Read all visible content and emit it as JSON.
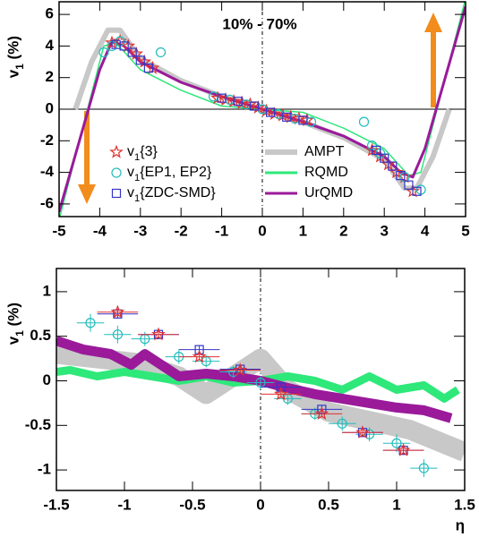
{
  "chart_data": [
    {
      "type": "scatter",
      "annotation": "10% - 70%",
      "ylabel": "v1 (%)",
      "xlim": [
        -5,
        5
      ],
      "xticks": [
        -5,
        -4,
        -3,
        -2,
        -1,
        0,
        1,
        2,
        3,
        4,
        5
      ],
      "ylim": [
        -6.8,
        6.8
      ],
      "yticks": [
        -6,
        -4,
        -2,
        0,
        2,
        4,
        6
      ],
      "hline": 0,
      "vline": 0,
      "series": [
        {
          "name": "AMPT",
          "kind": "line",
          "color": "#c8c8c8",
          "width": 6,
          "x": [
            -4.6,
            -4.2,
            -3.8,
            -3.5,
            -3,
            -2,
            -1,
            0,
            1,
            2,
            3,
            3.5,
            3.8,
            4.2,
            4.6
          ],
          "values": [
            0,
            3,
            5,
            5,
            3.2,
            1.8,
            0.8,
            0,
            -0.8,
            -1.8,
            -3.2,
            -5,
            -5,
            -3,
            0
          ]
        },
        {
          "name": "RQMD",
          "kind": "line",
          "color": "#2ee87a",
          "width": 1.5,
          "x": [
            -5,
            -4.6,
            -4.2,
            -3.9,
            -3.6,
            -3,
            -2,
            -1,
            0,
            1,
            2,
            3,
            3.6,
            3.9,
            4.2,
            4.6,
            5
          ],
          "values": [
            -7,
            -3,
            1,
            4,
            4.2,
            2.5,
            1.2,
            0.2,
            0,
            -0.2,
            -1.2,
            -2.5,
            -4.2,
            -4,
            -1,
            3,
            7
          ]
        },
        {
          "name": "UrQMD",
          "kind": "line",
          "color": "#9a1a9a",
          "width": 3,
          "x": [
            -5,
            -4.5,
            -4,
            -3.7,
            -3.4,
            -3,
            -2,
            -1,
            0,
            1,
            2,
            3,
            3.4,
            3.7,
            4,
            4.5,
            5
          ],
          "values": [
            -6.5,
            -2,
            2.5,
            4.3,
            4,
            3,
            1.7,
            0.8,
            0,
            -0.8,
            -1.7,
            -3,
            -4,
            -4.3,
            -2.5,
            2,
            6.5
          ]
        },
        {
          "name": "v1{3}",
          "kind": "marker",
          "marker": "star",
          "color": "#e03030",
          "x": [
            -3.7,
            -3.5,
            -3.3,
            -3.1,
            -2.9,
            -2.7,
            -1.1,
            -0.9,
            -0.7,
            -0.5,
            -0.3,
            -0.1,
            0.1,
            0.3,
            0.5,
            0.7,
            0.9,
            1.1,
            2.7,
            2.9,
            3.1,
            3.3,
            3.5,
            3.7
          ],
          "values": [
            4.2,
            4.3,
            4.0,
            3.5,
            3.0,
            2.6,
            0.7,
            0.6,
            0.5,
            0.4,
            0.3,
            0.1,
            -0.1,
            -0.3,
            -0.4,
            -0.5,
            -0.6,
            -0.7,
            -2.6,
            -3.0,
            -3.5,
            -4.0,
            -4.3,
            -5.2
          ]
        },
        {
          "name": "v1{EP1, EP2}",
          "kind": "marker",
          "marker": "circle",
          "color": "#22bcbc",
          "x": [
            -3.9,
            -3.7,
            -3.5,
            -2.5,
            -1.2,
            -0.8,
            -0.4,
            0,
            0.4,
            0.8,
            1.2,
            2.5,
            2.7,
            2.9,
            3.5,
            3.9
          ],
          "values": [
            3.6,
            4.0,
            4.3,
            3.6,
            0.8,
            0.6,
            0.3,
            0,
            -0.3,
            -0.6,
            -0.8,
            -0.8,
            -2.3,
            -2.8,
            -4.3,
            -5.1
          ]
        },
        {
          "name": "v1{ZDC-SMD}",
          "kind": "marker",
          "marker": "square",
          "color": "#3535c8",
          "x": [
            -3.6,
            -3.4,
            -3.2,
            -3.0,
            -2.8,
            -1.0,
            -0.6,
            -0.2,
            0.2,
            0.6,
            1.0,
            2.8,
            3.0,
            3.2,
            3.4,
            3.6,
            3.8
          ],
          "values": [
            4.1,
            4.0,
            3.6,
            3.1,
            2.6,
            0.7,
            0.5,
            0.2,
            -0.2,
            -0.5,
            -0.7,
            -2.6,
            -3.1,
            -3.6,
            -4.2,
            -4.8,
            -5.2
          ]
        }
      ]
    },
    {
      "type": "scatter",
      "ylabel": "v1 (%)",
      "xlabel": "η",
      "xlim": [
        -1.5,
        1.5
      ],
      "xticks": [
        -1.5,
        -1,
        -0.5,
        0,
        0.5,
        1,
        1.5
      ],
      "ylim": [
        -1.23,
        1.26
      ],
      "yticks": [
        -1,
        -0.5,
        0,
        0.5,
        1
      ],
      "vline": 0,
      "series": [
        {
          "kind": "line",
          "color": "#c8c8c8",
          "width": 22,
          "x": [
            -1.5,
            -1.2,
            -0.9,
            -0.6,
            -0.4,
            -0.2,
            0,
            0.2,
            0.5,
            0.8,
            1.1,
            1.5
          ],
          "values": [
            0.3,
            0.25,
            0.2,
            0.05,
            -0.15,
            0.05,
            0.25,
            -0.1,
            -0.35,
            -0.45,
            -0.55,
            -0.8
          ]
        },
        {
          "kind": "line",
          "color": "#2ee87a",
          "width": 9,
          "x": [
            -1.5,
            -1.4,
            -1.2,
            -1.0,
            -0.8,
            -0.6,
            -0.4,
            -0.2,
            0,
            0.2,
            0.4,
            0.6,
            0.8,
            1.0,
            1.2,
            1.35,
            1.45
          ],
          "values": [
            0.1,
            0.12,
            0.05,
            0.1,
            0.05,
            0,
            0.05,
            -0.02,
            0,
            0.05,
            0,
            -0.1,
            0.05,
            -0.1,
            -0.05,
            -0.2,
            -0.1
          ]
        },
        {
          "kind": "line",
          "color": "#9a1a9a",
          "width": 11,
          "x": [
            -1.5,
            -1.3,
            -1.1,
            -0.95,
            -0.85,
            -0.6,
            -0.4,
            -0.2,
            0,
            0.2,
            0.4,
            0.6,
            0.8,
            1.0,
            1.2,
            1.4
          ],
          "values": [
            0.45,
            0.35,
            0.3,
            0.18,
            0.3,
            0.05,
            0.08,
            0.05,
            0,
            -0.08,
            -0.15,
            -0.2,
            -0.25,
            -0.3,
            -0.33,
            -0.42
          ]
        },
        {
          "kind": "marker",
          "marker": "circle",
          "color": "#22bcbc",
          "x": [
            -1.25,
            -1.05,
            -0.85,
            -0.6,
            -0.4,
            -0.2,
            0,
            0.2,
            0.4,
            0.6,
            0.8,
            1.0,
            1.2
          ],
          "values": [
            0.65,
            0.52,
            0.47,
            0.27,
            0.22,
            0.1,
            -0.02,
            -0.2,
            -0.37,
            -0.48,
            -0.6,
            -0.7,
            -0.98
          ],
          "errors": [
            0.1,
            0.1,
            0.08,
            0.08,
            0.07,
            0.07,
            0.07,
            0.07,
            0.07,
            0.08,
            0.08,
            0.1,
            0.1
          ],
          "xerrors": [
            0.1,
            0.1,
            0.1,
            0.1,
            0.1,
            0.1,
            0.1,
            0.1,
            0.1,
            0.1,
            0.1,
            0.1,
            0.1
          ]
        },
        {
          "kind": "marker",
          "marker": "square",
          "color": "#3535c8",
          "x": [
            -1.05,
            -0.75,
            -0.45,
            -0.15,
            0.15,
            0.45,
            0.75,
            1.05
          ],
          "values": [
            0.75,
            0.52,
            0.35,
            0.13,
            -0.07,
            -0.32,
            -0.58,
            -0.78
          ],
          "errors": [
            0.05,
            0.05,
            0.05,
            0.05,
            0.05,
            0.05,
            0.05,
            0.05
          ],
          "xerrors": [
            0.15,
            0.15,
            0.15,
            0.15,
            0.15,
            0.15,
            0.15,
            0.15
          ]
        },
        {
          "kind": "marker",
          "marker": "star",
          "color": "#e03030",
          "x": [
            -1.05,
            -0.75,
            -0.45,
            -0.15,
            0.15,
            0.45,
            0.75,
            1.05
          ],
          "values": [
            0.77,
            0.52,
            0.27,
            0.12,
            -0.15,
            -0.37,
            -0.58,
            -0.78
          ],
          "errors": [
            0.04,
            0.04,
            0.04,
            0.04,
            0.04,
            0.04,
            0.04,
            0.04
          ],
          "xerrors": [
            0.15,
            0.15,
            0.15,
            0.15,
            0.15,
            0.15,
            0.15,
            0.15
          ]
        }
      ]
    }
  ]
}
